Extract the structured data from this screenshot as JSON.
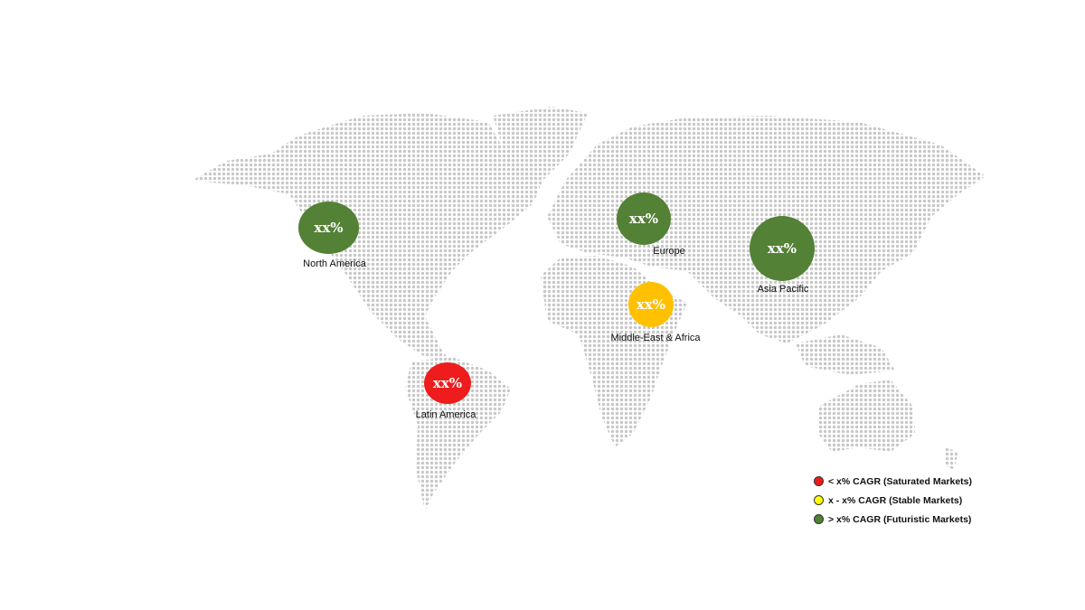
{
  "colors": {
    "saturated": "#ee1c1c",
    "stable": "#ffc000",
    "stable_legend": "#ffff00",
    "futuristic": "#538135",
    "land_dots": "#c8c8c8"
  },
  "regions": [
    {
      "name": "North America",
      "value": "xx%",
      "category": "futuristic"
    },
    {
      "name": "Europe",
      "value": "xx%",
      "category": "futuristic"
    },
    {
      "name": "Asia Pacific",
      "value": "xx%",
      "category": "futuristic"
    },
    {
      "name": "Middle-East & Africa",
      "value": "xx%",
      "category": "stable"
    },
    {
      "name": "Latin America",
      "value": "xx%",
      "category": "saturated"
    }
  ],
  "legend": [
    {
      "label": "< x% CAGR (Saturated Markets)",
      "category": "saturated"
    },
    {
      "label": "x - x% CAGR (Stable Markets)",
      "category": "stable"
    },
    {
      "label": "> x% CAGR (Futuristic Markets)",
      "category": "futuristic"
    }
  ]
}
